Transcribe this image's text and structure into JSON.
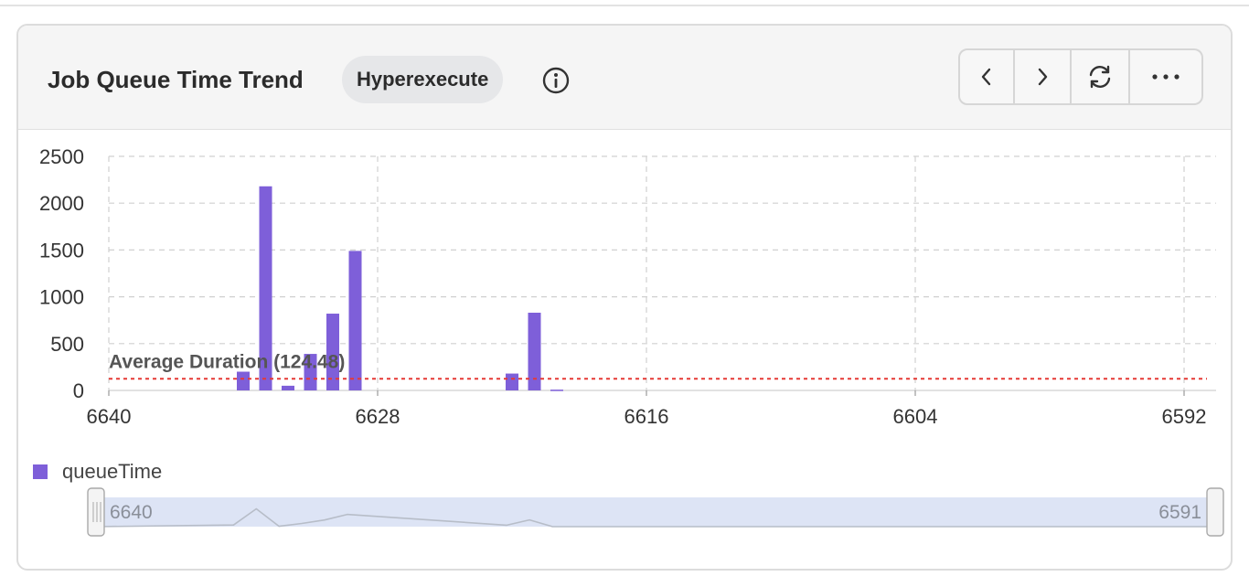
{
  "header": {
    "title": "Job Queue Time Trend",
    "badge": "Hyperexecute"
  },
  "icons": {
    "info": "info-circle-icon",
    "prev": "chevron-left-icon",
    "next": "chevron-right-icon",
    "refresh": "refresh-icon",
    "more": "more-horizontal-icon"
  },
  "colors": {
    "bar": "#7e5fd9",
    "average_line": "#e53935",
    "zoom_fill": "#dde4f5"
  },
  "chart_data": {
    "type": "bar",
    "x_reversed": true,
    "xlim": [
      6640,
      6591
    ],
    "x_ticks": [
      6640,
      6628,
      6616,
      6604,
      6592
    ],
    "ylim": [
      0,
      2500
    ],
    "y_ticks": [
      0,
      500,
      1000,
      1500,
      2000,
      2500
    ],
    "grid": true,
    "series": [
      {
        "name": "queueTime",
        "points": [
          {
            "x": 6634,
            "y": 200
          },
          {
            "x": 6633,
            "y": 2180
          },
          {
            "x": 6632,
            "y": 50
          },
          {
            "x": 6631,
            "y": 390
          },
          {
            "x": 6630,
            "y": 820
          },
          {
            "x": 6629,
            "y": 1490
          },
          {
            "x": 6622,
            "y": 180
          },
          {
            "x": 6621,
            "y": 830
          },
          {
            "x": 6620,
            "y": 8
          }
        ]
      }
    ],
    "average": {
      "label": "Average Duration (124.48)",
      "value": 124.48
    },
    "legend": {
      "position": "bottom-left",
      "label": "queueTime"
    },
    "zoom": {
      "start_label": "6640",
      "end_label": "6591"
    }
  }
}
